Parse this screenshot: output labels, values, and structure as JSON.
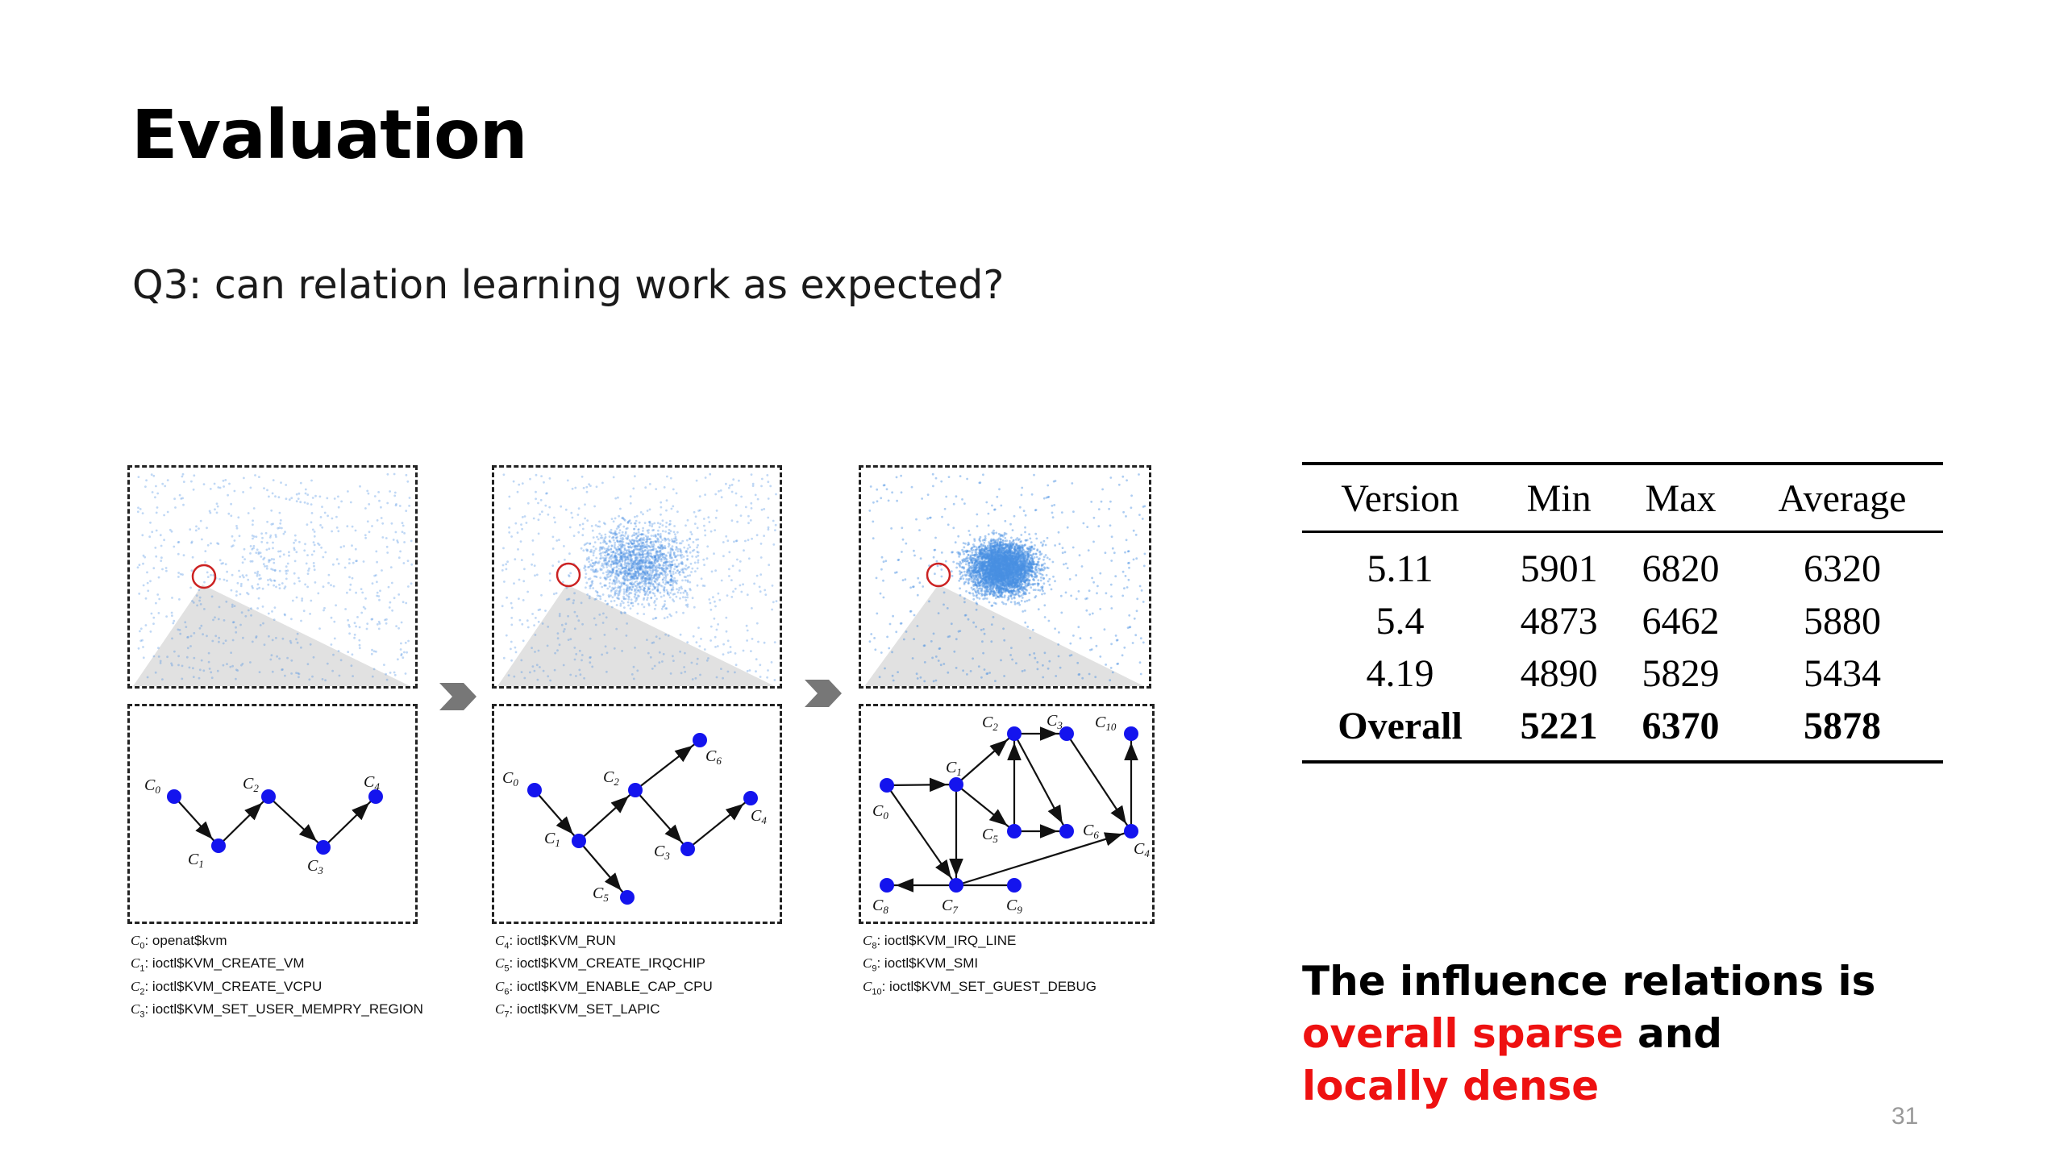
{
  "slide": {
    "title": "Evaluation",
    "question": "Q3: can relation learning work as expected?",
    "page_number": "31"
  },
  "figure": {
    "legend_1": [
      {
        "label": "C",
        "sub": "0",
        "text": ": openat$kvm"
      },
      {
        "label": "C",
        "sub": "1",
        "text": ": ioctl$KVM_CREATE_VM"
      },
      {
        "label": "C",
        "sub": "2",
        "text": ": ioctl$KVM_CREATE_VCPU"
      },
      {
        "label": "C",
        "sub": "3",
        "text": ": ioctl$KVM_SET_USER_MEMPRY_REGION"
      }
    ],
    "legend_2": [
      {
        "label": "C",
        "sub": "4",
        "text": ": ioctl$KVM_RUN"
      },
      {
        "label": "C",
        "sub": "5",
        "text": ": ioctl$KVM_CREATE_IRQCHIP"
      },
      {
        "label": "C",
        "sub": "6",
        "text": ": ioctl$KVM_ENABLE_CAP_CPU"
      },
      {
        "label": "C",
        "sub": "7",
        "text": ": ioctl$KVM_SET_LAPIC"
      }
    ],
    "legend_3": [
      {
        "label": "C",
        "sub": "8",
        "text": ": ioctl$KVM_IRQ_LINE"
      },
      {
        "label": "C",
        "sub": "9",
        "text": ": ioctl$KVM_SMI"
      },
      {
        "label": "C",
        "sub": "10",
        "text": ": ioctl$KVM_SET_GUEST_DEBUG"
      }
    ],
    "colors": {
      "node": "#1414ee",
      "cloud": "#4a90e2",
      "highlight": "#cc2222"
    }
  },
  "table": {
    "headers": [
      "Version",
      "Min",
      "Max",
      "Average"
    ],
    "rows": [
      [
        "5.11",
        "5901",
        "6820",
        "6320"
      ],
      [
        "5.4",
        "4873",
        "6462",
        "5880"
      ],
      [
        "4.19",
        "4890",
        "5829",
        "5434"
      ]
    ],
    "overall": [
      "Overall",
      "5221",
      "6370",
      "5878"
    ]
  },
  "conclusion": {
    "part1": "The influence relations is ",
    "part2": "overall sparse",
    "part3": " and ",
    "part4": "locally dense"
  }
}
